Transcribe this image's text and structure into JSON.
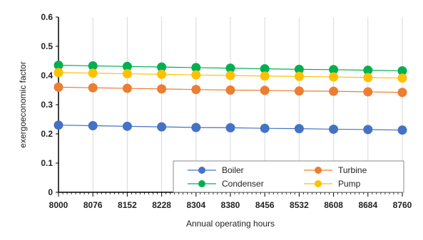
{
  "chart_data": {
    "type": "line",
    "title": "",
    "xlabel": "Annual operating hours",
    "ylabel": "exergoeconomic factor",
    "x": [
      8000,
      8076,
      8152,
      8228,
      8304,
      8380,
      8456,
      8532,
      8608,
      8684,
      8760
    ],
    "ylim": [
      0,
      0.6
    ],
    "yticks": [
      "0",
      "0.1",
      "0.2",
      "0.3",
      "0.4",
      "0.5",
      "0.6"
    ],
    "grid": "vertical",
    "legend_position": "bottom-right",
    "series": [
      {
        "name": "Boiler",
        "color": "#4472C4",
        "values": [
          0.23,
          0.228,
          0.226,
          0.224,
          0.222,
          0.221,
          0.219,
          0.218,
          0.216,
          0.215,
          0.213
        ]
      },
      {
        "name": "Turbine",
        "color": "#ED7D31",
        "values": [
          0.36,
          0.358,
          0.356,
          0.354,
          0.352,
          0.35,
          0.349,
          0.347,
          0.346,
          0.344,
          0.342
        ]
      },
      {
        "name": "Condenser",
        "color": "#00B050",
        "values": [
          0.435,
          0.433,
          0.431,
          0.429,
          0.427,
          0.425,
          0.423,
          0.421,
          0.42,
          0.418,
          0.416
        ]
      },
      {
        "name": "Pump",
        "color": "#FFC000",
        "values": [
          0.41,
          0.408,
          0.406,
          0.404,
          0.402,
          0.4,
          0.398,
          0.397,
          0.395,
          0.393,
          0.391
        ]
      }
    ]
  }
}
